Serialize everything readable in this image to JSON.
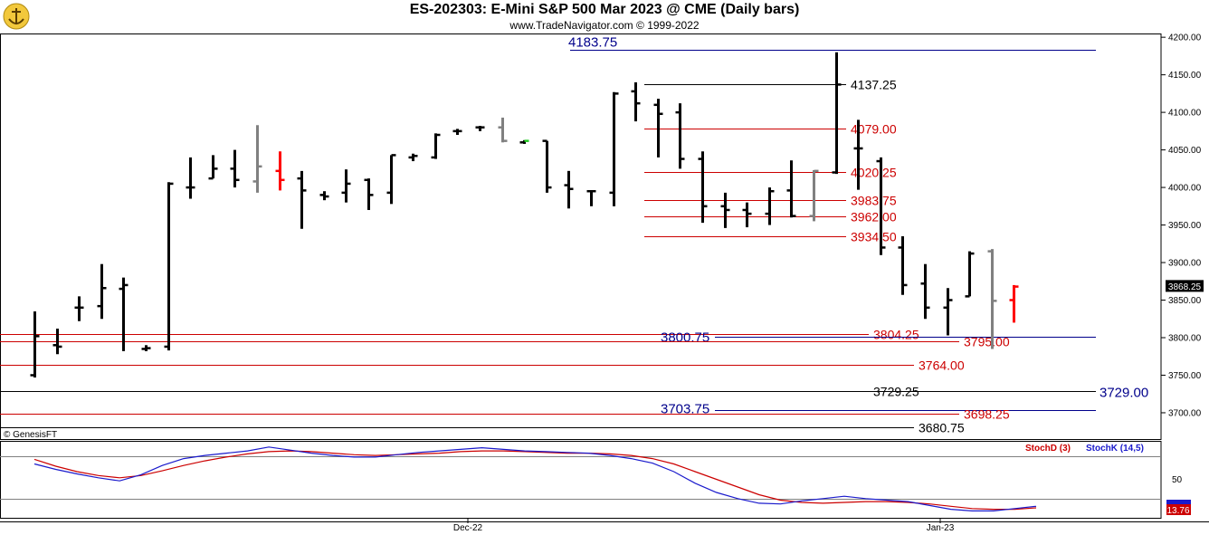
{
  "header": {
    "title": "ES-202303:  E-Mini S&P 500 Mar 2023 @ CME  (Daily bars)",
    "subtitle": "www.TradeNavigator.com © 1999-2022",
    "watermark": "© GenesisFT"
  },
  "colors": {
    "up_bar": "#000000",
    "down_bar": "#000000",
    "neutral_bar": "#808080",
    "highlight_bar": "#ff0000",
    "level_red": "#cc0000",
    "level_blue": "#00008b",
    "level_black": "#000000",
    "stoch_d": "#cc0000",
    "stoch_k": "#1a1acc"
  },
  "chart_data": [
    {
      "type": "ohlc",
      "ylim": [
        3665,
        4205
      ],
      "yticks": [
        3700,
        3750,
        3800,
        3850,
        3900,
        3950,
        4000,
        4050,
        4100,
        4150,
        4200
      ],
      "ytick_labels": [
        "3700.00",
        "3750.00",
        "3800.00",
        "3850.00",
        "3900.00",
        "3950.00",
        "4000.00",
        "4050.00",
        "4100.00",
        "4150.00",
        "4200.00"
      ],
      "xlabels": [
        "Dec-22",
        "Jan-23"
      ],
      "last_price": "3868.25",
      "bars": [
        {
          "o": 3750,
          "h": 3835,
          "l": 3747,
          "c": 3802,
          "col": "up"
        },
        {
          "o": 3790,
          "h": 3812,
          "l": 3778,
          "c": 3788,
          "col": "up"
        },
        {
          "o": 3840,
          "h": 3855,
          "l": 3822,
          "c": 3840,
          "col": "up"
        },
        {
          "o": 3842,
          "h": 3898,
          "l": 3825,
          "c": 3866,
          "col": "up"
        },
        {
          "o": 3865,
          "h": 3880,
          "l": 3782,
          "c": 3870,
          "col": "up"
        },
        {
          "o": 3785,
          "h": 3790,
          "l": 3782,
          "c": 3786,
          "col": "up"
        },
        {
          "o": 3788,
          "h": 4007,
          "l": 3783,
          "c": 4005,
          "col": "up"
        },
        {
          "o": 4000,
          "h": 4040,
          "l": 3985,
          "c": 4000,
          "col": "up"
        },
        {
          "o": 4012,
          "h": 4043,
          "l": 4012,
          "c": 4025,
          "col": "up"
        },
        {
          "o": 4025,
          "h": 4050,
          "l": 4000,
          "c": 4010,
          "col": "up"
        },
        {
          "o": 4008,
          "h": 4083,
          "l": 3993,
          "c": 4028,
          "col": "neutral"
        },
        {
          "o": 4022,
          "h": 4048,
          "l": 3996,
          "c": 4010,
          "col": "highlight"
        },
        {
          "o": 4012,
          "h": 4022,
          "l": 3945,
          "c": 3996,
          "col": "up"
        },
        {
          "o": 3990,
          "h": 3995,
          "l": 3983,
          "c": 3988,
          "col": "up"
        },
        {
          "o": 3993,
          "h": 4024,
          "l": 3980,
          "c": 4005,
          "col": "up"
        },
        {
          "o": 4010,
          "h": 4012,
          "l": 3970,
          "c": 3990,
          "col": "up"
        },
        {
          "o": 3993,
          "h": 4043,
          "l": 3978,
          "c": 4043,
          "col": "up"
        },
        {
          "o": 4040,
          "h": 4045,
          "l": 4035,
          "c": 4042,
          "col": "up"
        },
        {
          "o": 4040,
          "h": 4072,
          "l": 4038,
          "c": 4070,
          "col": "up"
        },
        {
          "o": 4075,
          "h": 4078,
          "l": 4070,
          "c": 4075,
          "col": "up"
        },
        {
          "o": 4080,
          "h": 4082,
          "l": 4075,
          "c": 4080,
          "col": "up"
        },
        {
          "o": 4080,
          "h": 4093,
          "l": 4060,
          "c": 4062,
          "col": "neutral"
        },
        {
          "o": 4060,
          "h": 4063,
          "l": 4058,
          "c": 4062,
          "col": "green"
        },
        {
          "o": 4062,
          "h": 4062,
          "l": 3993,
          "c": 4000,
          "col": "up"
        },
        {
          "o": 4003,
          "h": 4022,
          "l": 3972,
          "c": 3998,
          "col": "up"
        },
        {
          "o": 3995,
          "h": 3996,
          "l": 3975,
          "c": 3995,
          "col": "up"
        },
        {
          "o": 3993,
          "h": 4127,
          "l": 3975,
          "c": 4125,
          "col": "up"
        },
        {
          "o": 4128,
          "h": 4140,
          "l": 4088,
          "c": 4112,
          "col": "up"
        },
        {
          "o": 4110,
          "h": 4118,
          "l": 4040,
          "c": 4098,
          "col": "up"
        },
        {
          "o": 4100,
          "h": 4112,
          "l": 4025,
          "c": 4038,
          "col": "up"
        },
        {
          "o": 4038,
          "h": 4048,
          "l": 3953,
          "c": 3975,
          "col": "up"
        },
        {
          "o": 3975,
          "h": 3993,
          "l": 3946,
          "c": 3970,
          "col": "up"
        },
        {
          "o": 3970,
          "h": 3980,
          "l": 3947,
          "c": 3965,
          "col": "up"
        },
        {
          "o": 3965,
          "h": 4000,
          "l": 3950,
          "c": 3995,
          "col": "up"
        },
        {
          "o": 3996,
          "h": 4036,
          "l": 3960,
          "c": 3962,
          "col": "up"
        },
        {
          "o": 3962,
          "h": 4023,
          "l": 3955,
          "c": 4022,
          "col": "neutral"
        },
        {
          "o": 4020,
          "h": 4180,
          "l": 4018,
          "c": 4137,
          "col": "up"
        },
        {
          "o": 4052,
          "h": 4090,
          "l": 3997,
          "c": 4052,
          "col": "up"
        },
        {
          "o": 4035,
          "h": 4040,
          "l": 3910,
          "c": 3920,
          "col": "up"
        },
        {
          "o": 3920,
          "h": 3935,
          "l": 3857,
          "c": 3870,
          "col": "up"
        },
        {
          "o": 3872,
          "h": 3898,
          "l": 3825,
          "c": 3840,
          "col": "up"
        },
        {
          "o": 3840,
          "h": 3866,
          "l": 3803,
          "c": 3850,
          "col": "up"
        },
        {
          "o": 3855,
          "h": 3915,
          "l": 3855,
          "c": 3912,
          "col": "up"
        },
        {
          "o": 3915,
          "h": 3918,
          "l": 3785,
          "c": 3849,
          "col": "neutral"
        },
        {
          "o": 3850,
          "h": 3870,
          "l": 3820,
          "c": 3868,
          "col": "highlight"
        }
      ],
      "levels": [
        {
          "value": "4183.75",
          "label": "4183.75",
          "color": "blue",
          "label_side": "left"
        },
        {
          "value": "4137.25",
          "label": "4137.25",
          "color": "black",
          "label_side": "right"
        },
        {
          "value": "4079.00",
          "label": "4079.00",
          "color": "red",
          "label_side": "right"
        },
        {
          "value": "4020.25",
          "label": "4020.25",
          "color": "red",
          "label_side": "right"
        },
        {
          "value": "3983.75",
          "label": "3983.75",
          "color": "red",
          "label_side": "right"
        },
        {
          "value": "3962.00",
          "label": "3962.00",
          "color": "red",
          "label_side": "right"
        },
        {
          "value": "3934.50",
          "label": "3934.50",
          "color": "red",
          "label_side": "right"
        },
        {
          "value": "3804.25",
          "label": "3804.25",
          "color": "red",
          "label_side": "right"
        },
        {
          "value": "3800.75",
          "label": "3800.75",
          "color": "blue",
          "label_side": "left"
        },
        {
          "value": "3795.00",
          "label": "3795.00",
          "color": "red",
          "label_side": "right"
        },
        {
          "value": "3764.00",
          "label": "3764.00",
          "color": "red",
          "label_side": "right"
        },
        {
          "value": "3729.25",
          "label": "3729.25",
          "color": "black",
          "label_side": "right"
        },
        {
          "value": "3729.00",
          "label": "3729.00",
          "color": "blue",
          "label_side": "right"
        },
        {
          "value": "3703.75",
          "label": "3703.75",
          "color": "blue",
          "label_side": "left"
        },
        {
          "value": "3698.25",
          "label": "3698.25",
          "color": "red",
          "label_side": "right"
        },
        {
          "value": "3680.75",
          "label": "3680.75",
          "color": "black",
          "label_side": "right"
        }
      ]
    },
    {
      "type": "line",
      "title": "",
      "ylim": [
        0,
        100
      ],
      "ytick_labels": [
        "50"
      ],
      "last_value": "13.76",
      "series": [
        {
          "name": "StochD (3)",
          "values": [
            76,
            67,
            60,
            55,
            52,
            55,
            61,
            68,
            74,
            79,
            83,
            86,
            87,
            86,
            84,
            82,
            81,
            82,
            83,
            84,
            86,
            87,
            87,
            86,
            85,
            84,
            84,
            83,
            81,
            77,
            70,
            60,
            50,
            40,
            30,
            23,
            20,
            19,
            20,
            21,
            21,
            20,
            18,
            15,
            12,
            11,
            11,
            13
          ]
        },
        {
          "name": "StochK (14,5)",
          "values": [
            70,
            63,
            57,
            52,
            48,
            56,
            68,
            77,
            81,
            84,
            87,
            92,
            88,
            84,
            81,
            79,
            79,
            82,
            85,
            87,
            89,
            91,
            89,
            87,
            86,
            85,
            84,
            81,
            77,
            71,
            60,
            45,
            33,
            25,
            19,
            18,
            22,
            25,
            28,
            25,
            23,
            21,
            16,
            11,
            9,
            9,
            12,
            15
          ]
        }
      ]
    }
  ]
}
